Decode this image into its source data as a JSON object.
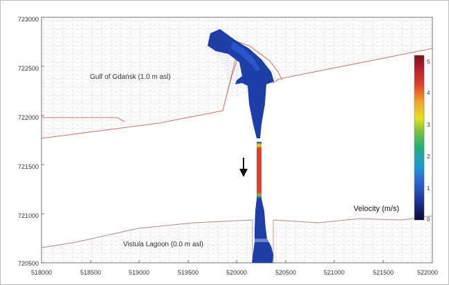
{
  "axes": {
    "x_ticks": [
      "518000",
      "518500",
      "519000",
      "519500",
      "520000",
      "520500",
      "521000",
      "521500",
      "522000"
    ],
    "y_ticks": [
      "723000",
      "722500",
      "722000",
      "721500",
      "721000",
      "720500"
    ]
  },
  "labels": {
    "gulf": "Gulf of Gdańsk (1.0 m asl)",
    "lagoon": "Vistula Lagoon (0.0 m asl)",
    "velocity": "Velocity (m/s)"
  },
  "colorbar": {
    "ticks": [
      "5",
      "4",
      "3",
      "2",
      "1",
      "0"
    ],
    "stops": [
      "#0a0a33",
      "#1b2f8f",
      "#2a5ed1",
      "#1c9bd6",
      "#22b07a",
      "#7cc23a",
      "#e8e020",
      "#f2a12a",
      "#e0402a",
      "#b81e2a",
      "#7a1020"
    ]
  },
  "colors": {
    "coast": "#c87a6a",
    "mesh": "#d8d8e4",
    "flow": "#1f3fa8"
  }
}
